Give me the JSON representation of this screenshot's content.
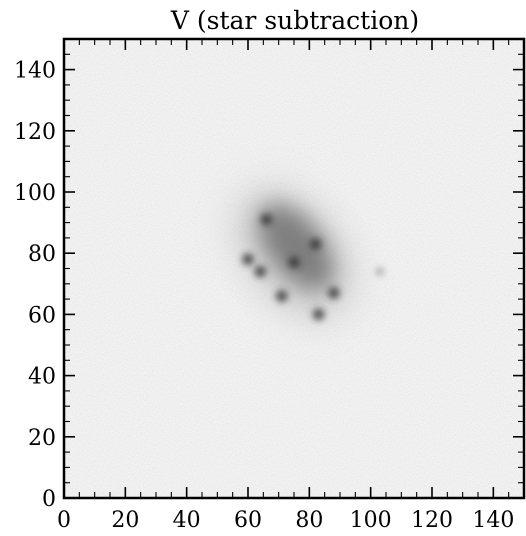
{
  "figure": {
    "title": "V (star subtraction)",
    "frame_color": "#000000",
    "background_color": "#ffffff"
  },
  "image": {
    "type": "grayscale astronomical image",
    "colormap": "Greys",
    "background_level": "light gray noise",
    "x_range": [
      0,
      150
    ],
    "y_range": [
      0,
      150
    ],
    "galaxy": {
      "center": [
        75,
        80
      ],
      "orientation": "elongated from upper-left to lower-right",
      "knots": [
        {
          "x": 66,
          "y": 91
        },
        {
          "x": 75,
          "y": 77
        },
        {
          "x": 64,
          "y": 74
        },
        {
          "x": 71,
          "y": 66
        },
        {
          "x": 82,
          "y": 83
        },
        {
          "x": 88,
          "y": 67
        },
        {
          "x": 83,
          "y": 60
        },
        {
          "x": 60,
          "y": 78
        }
      ]
    },
    "isolated_source": {
      "x": 103,
      "y": 74
    }
  },
  "axes": {
    "x_ticks": [
      "0",
      "20",
      "40",
      "60",
      "80",
      "100",
      "120",
      "140"
    ],
    "y_ticks": [
      "0",
      "20",
      "40",
      "60",
      "80",
      "100",
      "120",
      "140"
    ],
    "tick_direction": "in",
    "ticks_on_all_sides": true
  }
}
